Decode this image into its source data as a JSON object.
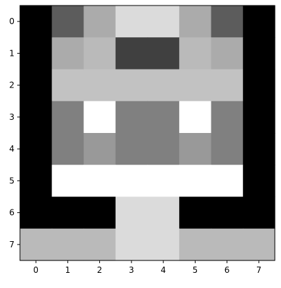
{
  "chart_data": {
    "type": "heatmap",
    "title": "",
    "xlabel": "",
    "ylabel": "",
    "colormap": "gray",
    "value_range": [
      0,
      1
    ],
    "x_ticks": [
      "0",
      "1",
      "2",
      "3",
      "4",
      "5",
      "6",
      "7"
    ],
    "y_ticks": [
      "0",
      "1",
      "2",
      "3",
      "4",
      "5",
      "6",
      "7"
    ],
    "grid": false,
    "values": [
      [
        0.0,
        0.36,
        0.67,
        0.86,
        0.86,
        0.67,
        0.36,
        0.0
      ],
      [
        0.0,
        0.67,
        0.73,
        0.25,
        0.25,
        0.73,
        0.67,
        0.0
      ],
      [
        0.0,
        0.76,
        0.76,
        0.76,
        0.76,
        0.76,
        0.76,
        0.0
      ],
      [
        0.0,
        0.5,
        1.0,
        0.5,
        0.5,
        1.0,
        0.5,
        0.0
      ],
      [
        0.0,
        0.5,
        0.6,
        0.5,
        0.5,
        0.6,
        0.5,
        0.0
      ],
      [
        0.0,
        1.0,
        1.0,
        1.0,
        1.0,
        1.0,
        1.0,
        0.0
      ],
      [
        0.0,
        0.0,
        0.0,
        0.86,
        0.86,
        0.0,
        0.0,
        0.0
      ],
      [
        0.73,
        0.73,
        0.73,
        0.86,
        0.86,
        0.73,
        0.73,
        0.73
      ]
    ]
  }
}
